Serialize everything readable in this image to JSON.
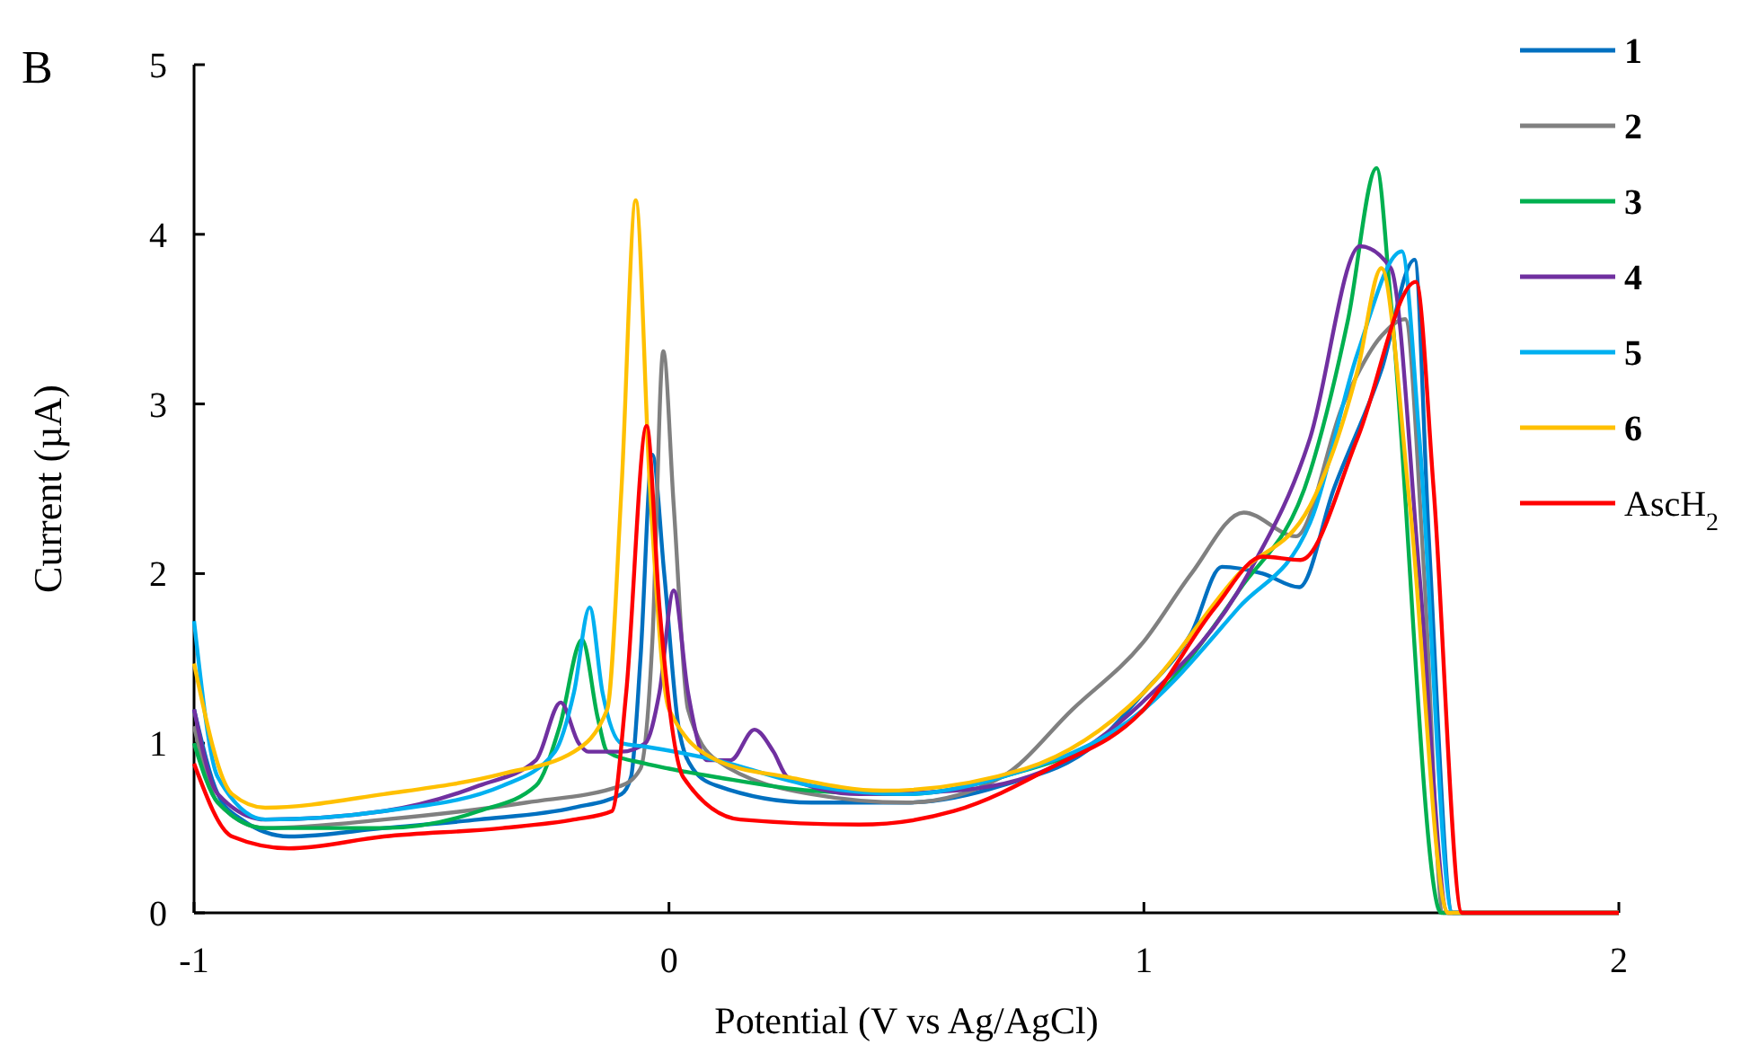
{
  "chart_data": {
    "type": "line",
    "xlabel": "Potential (V vs Ag/AgCl)",
    "ylabel": "Current (µA)",
    "annotations": [
      "B"
    ],
    "xlim": [
      -1,
      2
    ],
    "ylim": [
      0,
      5
    ],
    "xticks": [
      -1,
      0,
      1,
      2
    ],
    "yticks": [
      0,
      1,
      2,
      3,
      4,
      5
    ],
    "grid": false,
    "legend": "right",
    "marker": "none",
    "line_style": "solid",
    "series": [
      {
        "name": "1",
        "color": "#0070c0",
        "x": [
          -1,
          -0.95,
          -0.9,
          -0.8,
          -0.6,
          -0.4,
          -0.2,
          -0.1,
          -0.08,
          -0.06,
          -0.035,
          -0.01,
          0.02,
          0.05,
          0.1,
          0.3,
          0.5,
          0.7,
          0.9,
          1.0,
          1.1,
          1.164,
          1.25,
          1.327,
          1.4,
          1.5,
          1.57,
          1.6,
          1.65,
          2
        ],
        "values": [
          1.2,
          0.7,
          0.55,
          0.45,
          0.5,
          0.55,
          0.62,
          0.7,
          0.8,
          1.5,
          2.7,
          2.0,
          1.1,
          0.85,
          0.75,
          0.65,
          0.65,
          0.75,
          1.0,
          1.3,
          1.65,
          2.04,
          2.0,
          1.92,
          2.5,
          3.2,
          3.85,
          2.2,
          0,
          0
        ]
      },
      {
        "name": "2",
        "color": "#808080",
        "x": [
          -1,
          -0.95,
          -0.85,
          -0.6,
          -0.3,
          -0.1,
          -0.06,
          -0.035,
          -0.012,
          0.01,
          0.04,
          0.1,
          0.3,
          0.5,
          0.7,
          0.85,
          1.0,
          1.1,
          1.21,
          1.32,
          1.42,
          1.5,
          1.55,
          1.59,
          1.63,
          2
        ],
        "values": [
          1.1,
          0.65,
          0.5,
          0.55,
          0.65,
          0.75,
          0.85,
          1.6,
          3.31,
          2.4,
          1.2,
          0.9,
          0.7,
          0.65,
          0.8,
          1.2,
          1.6,
          2.0,
          2.36,
          2.22,
          3.0,
          3.4,
          3.5,
          2.0,
          0,
          0
        ]
      },
      {
        "name": "3",
        "color": "#00b050",
        "x": [
          -1,
          -0.95,
          -0.85,
          -0.6,
          -0.4,
          -0.28,
          -0.23,
          -0.183,
          -0.15,
          -0.13,
          -0.05,
          0,
          0.1,
          0.3,
          0.5,
          0.7,
          1.0,
          1.2,
          1.35,
          1.43,
          1.49,
          1.52,
          1.626,
          2
        ],
        "values": [
          1.0,
          0.65,
          0.5,
          0.5,
          0.6,
          0.75,
          1.1,
          1.61,
          1.15,
          0.95,
          0.88,
          0.85,
          0.8,
          0.72,
          0.7,
          0.8,
          1.2,
          1.9,
          2.6,
          3.5,
          4.39,
          3.6,
          0,
          0
        ]
      },
      {
        "name": "4",
        "color": "#7030a0",
        "x": [
          -1,
          -0.95,
          -0.85,
          -0.6,
          -0.4,
          -0.28,
          -0.228,
          -0.19,
          -0.17,
          -0.1,
          -0.05,
          -0.02,
          0.01,
          0.04,
          0.08,
          0.13,
          0.18,
          0.22,
          0.25,
          0.4,
          0.6,
          0.8,
          1.0,
          1.22,
          1.35,
          1.455,
          1.52,
          1.58,
          1.64,
          2
        ],
        "values": [
          1.2,
          0.7,
          0.55,
          0.6,
          0.75,
          0.9,
          1.24,
          1.0,
          0.95,
          0.95,
          1.0,
          1.3,
          1.9,
          1.3,
          0.9,
          0.9,
          1.08,
          0.95,
          0.8,
          0.7,
          0.72,
          0.85,
          1.25,
          2.0,
          2.8,
          3.93,
          3.8,
          2.0,
          0,
          0
        ]
      },
      {
        "name": "5",
        "color": "#00b0f0",
        "x": [
          -1,
          -0.95,
          -0.85,
          -0.6,
          -0.35,
          -0.24,
          -0.2,
          -0.167,
          -0.14,
          -0.1,
          -0.05,
          0.1,
          0.3,
          0.5,
          0.7,
          1.0,
          1.2,
          1.35,
          1.45,
          1.543,
          1.58,
          1.65,
          2
        ],
        "values": [
          1.72,
          0.8,
          0.55,
          0.6,
          0.75,
          0.95,
          1.3,
          1.8,
          1.3,
          1.0,
          0.98,
          0.9,
          0.75,
          0.7,
          0.8,
          1.2,
          1.8,
          2.3,
          3.3,
          3.9,
          2.8,
          0,
          0
        ]
      },
      {
        "name": "6",
        "color": "#ffc000",
        "x": [
          -1,
          -0.92,
          -0.85,
          -0.6,
          -0.35,
          -0.2,
          -0.13,
          -0.1,
          -0.07,
          -0.04,
          0,
          0.1,
          0.25,
          0.45,
          0.75,
          1.0,
          1.2,
          1.35,
          1.45,
          1.5,
          1.56,
          1.64,
          2
        ],
        "values": [
          1.47,
          0.7,
          0.62,
          0.7,
          0.82,
          0.95,
          1.2,
          2.5,
          4.2,
          2.5,
          1.2,
          0.9,
          0.8,
          0.72,
          0.85,
          1.3,
          2.0,
          2.4,
          3.2,
          3.8,
          2.4,
          0,
          0
        ]
      },
      {
        "name": "AscH$_{2}$",
        "color": "#ff0000",
        "x": [
          -1,
          -0.92,
          -0.8,
          -0.6,
          -0.35,
          -0.2,
          -0.12,
          -0.09,
          -0.047,
          -0.02,
          0.03,
          0.15,
          0.4,
          0.6,
          0.8,
          1.0,
          1.15,
          1.25,
          1.33,
          1.45,
          1.573,
          1.61,
          1.67,
          2
        ],
        "values": [
          0.88,
          0.45,
          0.38,
          0.45,
          0.5,
          0.55,
          0.6,
          1.3,
          2.87,
          1.8,
          0.8,
          0.55,
          0.52,
          0.6,
          0.85,
          1.2,
          1.8,
          2.1,
          2.08,
          2.8,
          3.72,
          2.5,
          0,
          0
        ]
      }
    ]
  }
}
